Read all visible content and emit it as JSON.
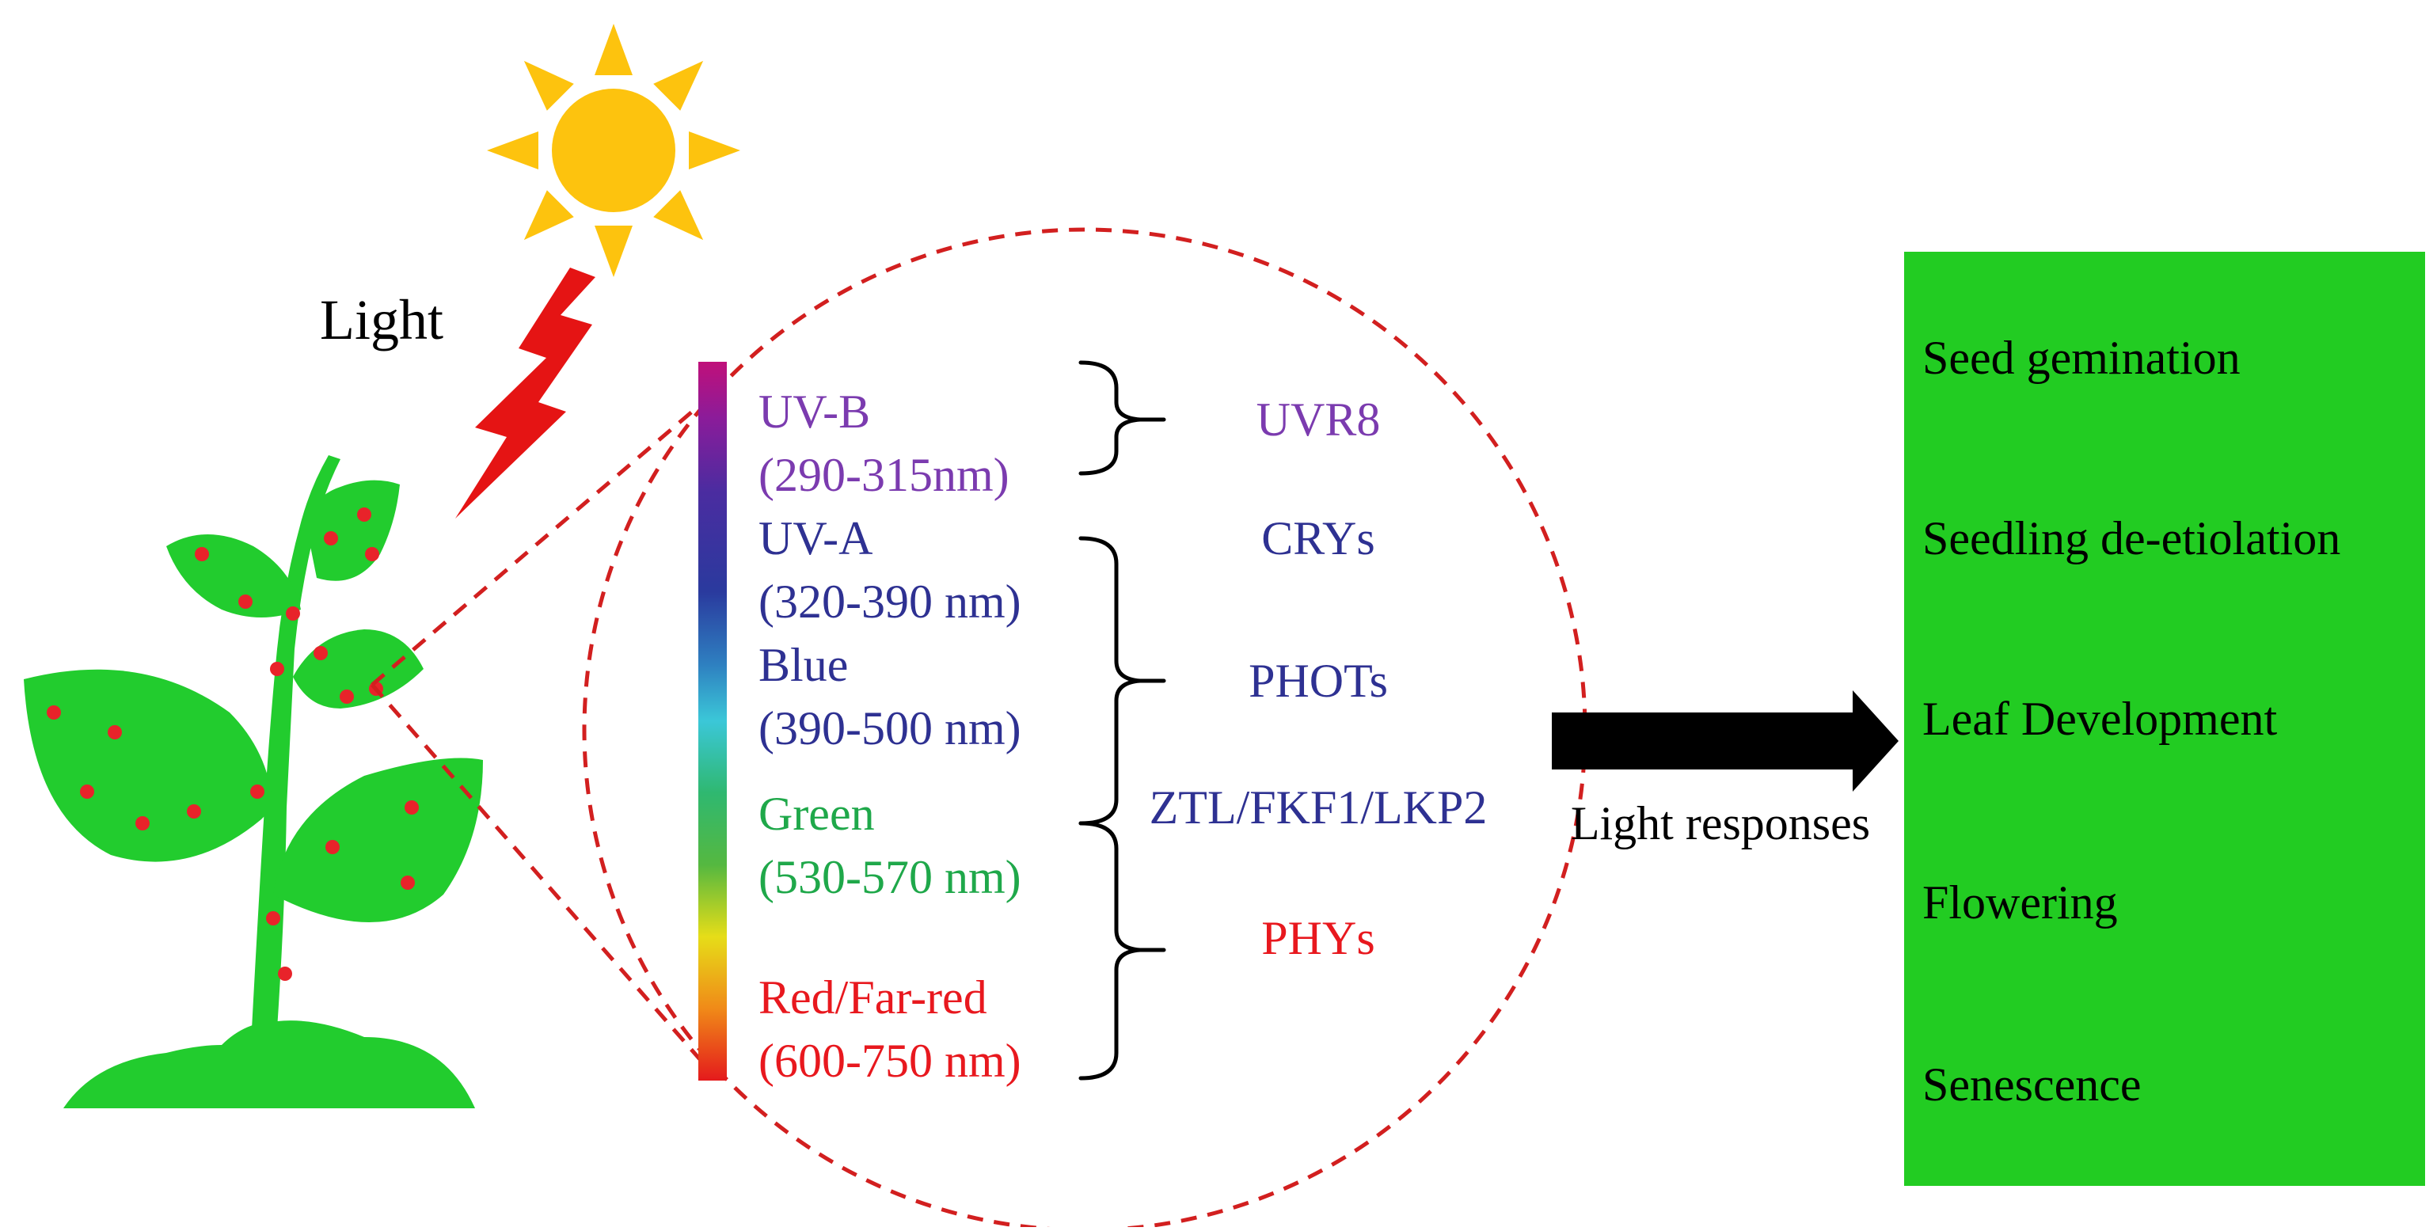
{
  "colors": {
    "sun": "#FDC30E",
    "bolt": "#E51414",
    "plant": "#22CC2E",
    "dots": "#E8232A",
    "circle": "#D21F1F",
    "panel": "#22CC22",
    "arrow": "#000000",
    "uvb": "#7B3BAF",
    "uva_blue": "#2E3192",
    "green": "#1FA84A",
    "red": "#E8181E"
  },
  "icons": [
    "sun-icon",
    "lightning-bolt-icon",
    "plant-icon"
  ],
  "light_label": "Light",
  "spectrum": [
    {
      "name": "UV-B",
      "range": "(290-315nm)",
      "color": "#7B3BAF"
    },
    {
      "name": "UV-A",
      "range": "(320-390 nm)",
      "color": "#2E3192"
    },
    {
      "name": "Blue",
      "range": "(390-500 nm)",
      "color": "#2E3192"
    },
    {
      "name": "Green",
      "range": "(530-570 nm)",
      "color": "#1FA84A"
    },
    {
      "name": "Red/Far-red",
      "range": "(600-750 nm)",
      "color": "#E8181E"
    }
  ],
  "photoreceptors": [
    {
      "name": "UVR8",
      "color": "#7B3BAF"
    },
    {
      "name": "CRYs",
      "color": "#2E3192"
    },
    {
      "name": "PHOTs",
      "color": "#2E3192"
    },
    {
      "name": "ZTL/FKF1/LKP2",
      "color": "#2E3192"
    },
    {
      "name": "PHYs",
      "color": "#E8181E"
    }
  ],
  "arrow_label": "Light responses",
  "responses": [
    "Seed gemination",
    "Seedling de-etiolation",
    "Leaf Development",
    "Flowering",
    "Senescence"
  ]
}
